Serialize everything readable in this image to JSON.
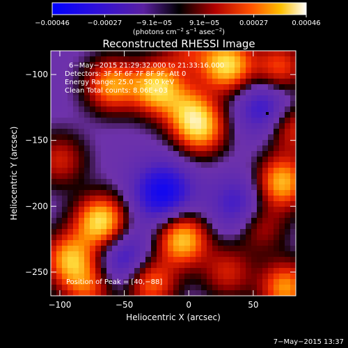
{
  "chart_data": {
    "type": "heatmap",
    "title": "Reconstructed RHESSI Image",
    "xlabel": "Heliocentric X (arcsec)",
    "ylabel": "Heliocentric Y (arcsec)",
    "xlim": [
      -107,
      83
    ],
    "ylim": [
      -268,
      -82
    ],
    "x_ticks": [
      -100,
      -50,
      0,
      50
    ],
    "y_ticks": [
      -100,
      -150,
      -200,
      -250
    ],
    "x_tick_labels": [
      "−100",
      "−50",
      "0",
      "50"
    ],
    "y_tick_labels": [
      "−100",
      "−150",
      "−200",
      "−250"
    ],
    "colorbar": {
      "ticks": [
        -0.00046,
        -0.00027,
        -9.1e-05,
        9.1e-05,
        0.00027,
        0.00046
      ],
      "tick_labels": [
        "−0.00046",
        "−0.00027",
        "−9.1e−05",
        "9.1e−05",
        "0.00027",
        "0.00046"
      ],
      "units_text": "(photons cm",
      "units_exp1": "−2",
      "units_mid": " s",
      "units_exp2": "−1",
      "units_end": " asec",
      "units_exp3": "−2",
      "units_close": ")"
    },
    "annotations": [
      "6−May−2015 21:29:32.000 to 21:33:16.000",
      "Detectors: 3F 5F 6F 7F 8F 9F, Att 0",
      "Energy Range: 25.0 − 50.0 keV",
      "Clean     Total counts: 8.06E+03"
    ],
    "peak_label": "Position of Peak = [40,−88]",
    "peak_position": [
      40,
      -88
    ],
    "blobs": [
      {
        "x": -68,
        "y": -212,
        "intensity": 1.0
      },
      {
        "x": -92,
        "y": -240,
        "intensity": 0.8
      },
      {
        "x": -78,
        "y": -262,
        "intensity": 0.55
      },
      {
        "x": -60,
        "y": -108,
        "intensity": 0.75
      },
      {
        "x": -25,
        "y": -110,
        "intensity": 0.9
      },
      {
        "x": 0,
        "y": -128,
        "intensity": 0.6
      },
      {
        "x": 30,
        "y": -93,
        "intensity": 0.95
      },
      {
        "x": 10,
        "y": -142,
        "intensity": 0.7
      },
      {
        "x": -5,
        "y": -225,
        "intensity": 0.9
      },
      {
        "x": 72,
        "y": -182,
        "intensity": 0.85
      },
      {
        "x": 80,
        "y": -140,
        "intensity": 0.55
      },
      {
        "x": 70,
        "y": -95,
        "intensity": 0.6
      },
      {
        "x": 75,
        "y": -262,
        "intensity": 0.75
      },
      {
        "x": -30,
        "y": -258,
        "intensity": 0.7
      },
      {
        "x": 30,
        "y": -250,
        "intensity": 0.45
      },
      {
        "x": 55,
        "y": -215,
        "intensity": 0.45
      },
      {
        "x": -100,
        "y": -165,
        "intensity": 0.45
      },
      {
        "x": 0,
        "y": -82,
        "intensity": 0.4
      }
    ],
    "negative_regions": [
      {
        "x": -20,
        "y": -190,
        "intensity": 0.7
      },
      {
        "x": 60,
        "y": -125,
        "intensity": 0.5
      },
      {
        "x": -50,
        "y": -240,
        "intensity": 0.5
      },
      {
        "x": 40,
        "y": -200,
        "intensity": 0.45
      }
    ]
  },
  "timestamp": "7−May−2015 13:37"
}
